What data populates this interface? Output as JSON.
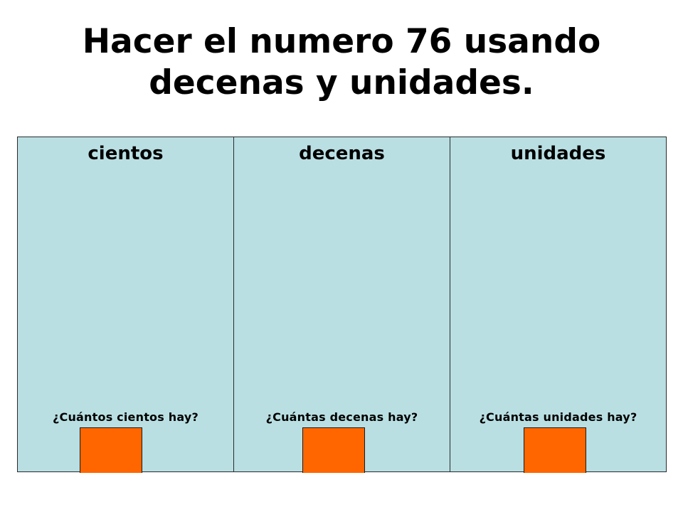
{
  "title": {
    "line1": "Hacer el numero 76 usando",
    "line2": "decenas y unidades."
  },
  "columns": [
    {
      "header": "cientos",
      "question": "¿Cuántos cientos hay?",
      "answer": ""
    },
    {
      "header": "decenas",
      "question": "¿Cuántas decenas hay?",
      "answer": ""
    },
    {
      "header": "unidades",
      "question": "¿Cuántas unidades hay?",
      "answer": ""
    }
  ],
  "colors": {
    "panel": "#b9dfe3",
    "answer_box": "#ff6600"
  }
}
